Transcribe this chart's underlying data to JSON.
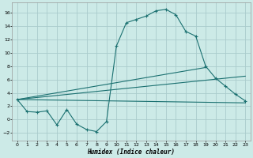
{
  "xlabel": "Humidex (Indice chaleur)",
  "bg_color": "#cceae7",
  "grid_color": "#aacccc",
  "line_color": "#1a7070",
  "xlim": [
    -0.5,
    23.5
  ],
  "ylim": [
    -3.2,
    17.5
  ],
  "x_ticks": [
    0,
    1,
    2,
    3,
    4,
    5,
    6,
    7,
    8,
    9,
    10,
    11,
    12,
    13,
    14,
    15,
    16,
    17,
    18,
    19,
    20,
    21,
    22,
    23
  ],
  "y_ticks": [
    -2,
    0,
    2,
    4,
    6,
    8,
    10,
    12,
    14,
    16
  ],
  "curve1_x": [
    0,
    1,
    2,
    3,
    4,
    5,
    6,
    7,
    8,
    9,
    10,
    11,
    12,
    13,
    14,
    15,
    16,
    17,
    18,
    19,
    20,
    21,
    22,
    23
  ],
  "curve1_y": [
    3.0,
    1.2,
    1.1,
    1.3,
    -0.8,
    1.5,
    -0.7,
    -1.5,
    -1.8,
    -0.3,
    11.0,
    14.5,
    15.0,
    15.5,
    16.3,
    16.5,
    15.7,
    13.2,
    12.5,
    8.0,
    6.2,
    5.0,
    3.8,
    2.8
  ],
  "line1_x": [
    0,
    23
  ],
  "line1_y": [
    3.0,
    2.5
  ],
  "line2_x": [
    0,
    23
  ],
  "line2_y": [
    3.0,
    6.5
  ],
  "line3_x": [
    0,
    19
  ],
  "line3_y": [
    3.0,
    7.8
  ]
}
